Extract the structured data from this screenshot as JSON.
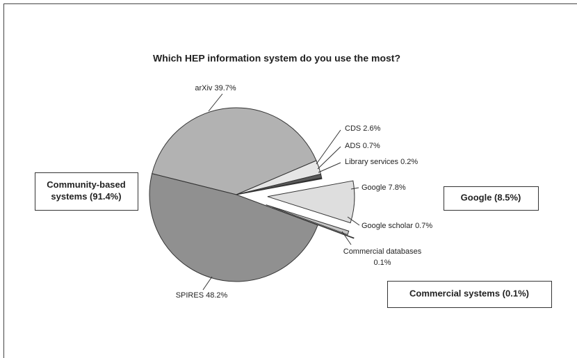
{
  "chart_data": {
    "type": "pie",
    "title": "Which HEP information system do you use the most?",
    "categories": [
      "arXiv",
      "CDS",
      "ADS",
      "Library services",
      "Google",
      "Google scholar",
      "Commercial databases",
      "SPIRES"
    ],
    "values": [
      39.7,
      2.6,
      0.7,
      0.2,
      7.8,
      0.7,
      0.1,
      48.2
    ],
    "value_labels": [
      "39.7%",
      "2.6%",
      "0.7%",
      "0.2%",
      "7.8%",
      "0.7%",
      "0.1%",
      "48.2%"
    ],
    "colors": [
      "#b2b2b2",
      "#e6e6e6",
      "#5a5a5a",
      "#222222",
      "#dedede",
      "#c6c6c6",
      "#333333",
      "#909090"
    ],
    "annotations": [
      {
        "lines": [
          "Community-based",
          "systems (91.4%)"
        ]
      },
      {
        "lines": [
          "Google (8.5%)"
        ]
      },
      {
        "lines": [
          "Commercial systems (0.1%)"
        ]
      }
    ]
  }
}
